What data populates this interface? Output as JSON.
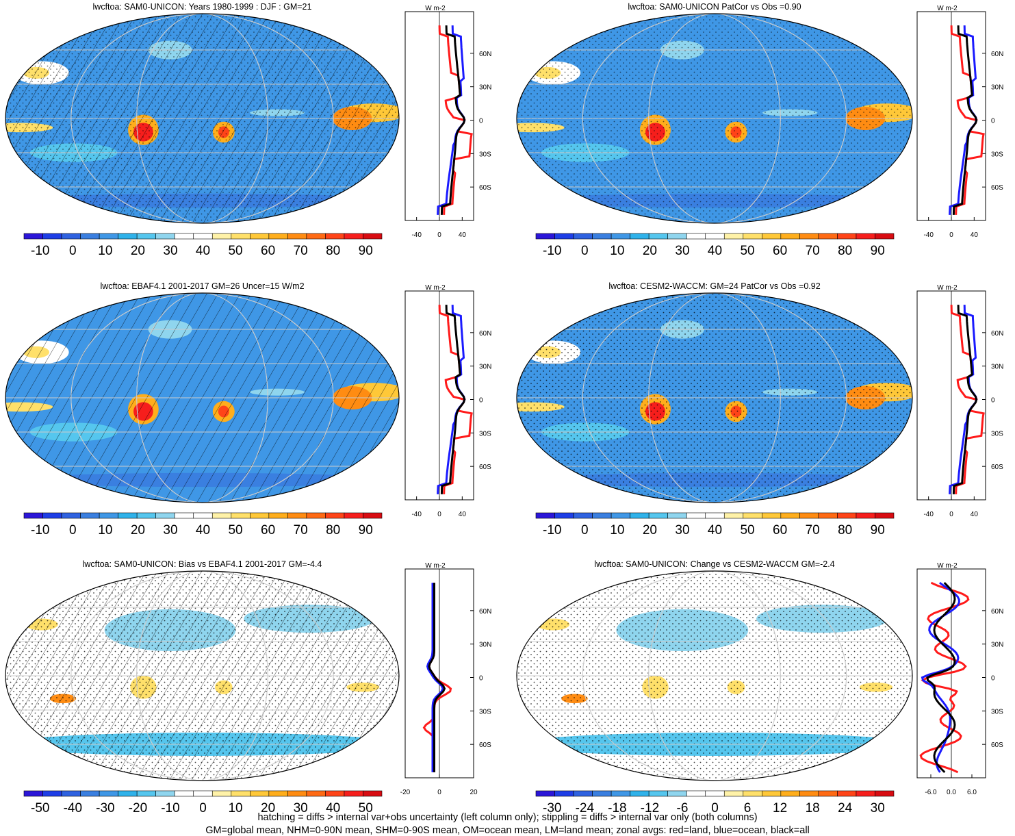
{
  "footer": {
    "line1": "hatching = diffs > internal var+obs uncertainty (left column only); stippling = diffs > internal var only (both columns)",
    "line2": "GM=global mean, NHM=0-90N mean, SHM=0-90S mean, OM=ocean mean, LM=land mean; zonal avgs: red=land, blue=ocean, black=all"
  },
  "chart_data": [
    {
      "type": "heatmap",
      "title": "lwcftoa: SAM0-UNICON: Years 1980-1999 : DJF : GM=21",
      "colorbar_ticks": [
        "-10",
        "0",
        "10",
        "20",
        "30",
        "40",
        "50",
        "60",
        "70",
        "80",
        "90"
      ],
      "colorbar_range": [
        -15,
        95
      ],
      "colorbar_colors": [
        "#2b16d8",
        "#1e3ee6",
        "#2f62e0",
        "#3a7fe0",
        "#3f97e6",
        "#2fb2ea",
        "#55c6ee",
        "#8fd5ee",
        "#ffffff",
        "#ffffff",
        "#fff2a8",
        "#ffe06a",
        "#ffc838",
        "#ffae1c",
        "#ff8c12",
        "#ff6a14",
        "#ff4418",
        "#f61e1c",
        "#d80c12"
      ],
      "zonal_profile": {
        "unit": "W m-2",
        "xticks": [
          "-40",
          "0",
          "40"
        ],
        "xrange": [
          -60,
          60
        ],
        "yticks": [
          "60N",
          "30N",
          "0",
          "30S",
          "60S"
        ]
      }
    },
    {
      "type": "heatmap",
      "title": "lwcftoa: SAM0-UNICON PatCor vs Obs =0.90",
      "colorbar_ticks": [
        "-10",
        "0",
        "10",
        "20",
        "30",
        "40",
        "50",
        "60",
        "70",
        "80",
        "90"
      ],
      "colorbar_range": [
        -15,
        95
      ],
      "colorbar_colors": [
        "#2b16d8",
        "#1e3ee6",
        "#2f62e0",
        "#3a7fe0",
        "#3f97e6",
        "#2fb2ea",
        "#55c6ee",
        "#8fd5ee",
        "#ffffff",
        "#ffffff",
        "#fff2a8",
        "#ffe06a",
        "#ffc838",
        "#ffae1c",
        "#ff8c12",
        "#ff6a14",
        "#ff4418",
        "#f61e1c",
        "#d80c12"
      ],
      "zonal_profile": {
        "unit": "W m-2",
        "xticks": [
          "-40",
          "0",
          "40"
        ],
        "xrange": [
          -60,
          60
        ],
        "yticks": [
          "60N",
          "30N",
          "0",
          "30S",
          "60S"
        ]
      }
    },
    {
      "type": "heatmap",
      "title": "lwcftoa: EBAF4.1 2001-2017 GM=26 Uncer=15 W/m2",
      "colorbar_ticks": [
        "-10",
        "0",
        "10",
        "20",
        "30",
        "40",
        "50",
        "60",
        "70",
        "80",
        "90"
      ],
      "colorbar_range": [
        -15,
        95
      ],
      "colorbar_colors": [
        "#2b16d8",
        "#1e3ee6",
        "#2f62e0",
        "#3a7fe0",
        "#3f97e6",
        "#2fb2ea",
        "#55c6ee",
        "#8fd5ee",
        "#ffffff",
        "#ffffff",
        "#fff2a8",
        "#ffe06a",
        "#ffc838",
        "#ffae1c",
        "#ff8c12",
        "#ff6a14",
        "#ff4418",
        "#f61e1c",
        "#d80c12"
      ],
      "zonal_profile": {
        "unit": "W m-2",
        "xticks": [
          "-40",
          "0",
          "40"
        ],
        "xrange": [
          -60,
          60
        ],
        "yticks": [
          "60N",
          "30N",
          "0",
          "30S",
          "60S"
        ]
      }
    },
    {
      "type": "heatmap",
      "title": "lwcftoa: CESM2-WACCM: GM=24 PatCor vs Obs =0.92",
      "colorbar_ticks": [
        "-10",
        "0",
        "10",
        "20",
        "30",
        "40",
        "50",
        "60",
        "70",
        "80",
        "90"
      ],
      "colorbar_range": [
        -15,
        95
      ],
      "colorbar_colors": [
        "#2b16d8",
        "#1e3ee6",
        "#2f62e0",
        "#3a7fe0",
        "#3f97e6",
        "#2fb2ea",
        "#55c6ee",
        "#8fd5ee",
        "#ffffff",
        "#ffffff",
        "#fff2a8",
        "#ffe06a",
        "#ffc838",
        "#ffae1c",
        "#ff8c12",
        "#ff6a14",
        "#ff4418",
        "#f61e1c",
        "#d80c12"
      ],
      "zonal_profile": {
        "unit": "W m-2",
        "xticks": [
          "-40",
          "0",
          "40"
        ],
        "xrange": [
          -60,
          60
        ],
        "yticks": [
          "60N",
          "30N",
          "0",
          "30S",
          "60S"
        ]
      }
    },
    {
      "type": "heatmap",
      "title": "lwcftoa: SAM0-UNICON: Bias vs EBAF4.1 2001-2017 GM=-4.4",
      "colorbar_ticks": [
        "-50",
        "-40",
        "-30",
        "-20",
        "-10",
        "0",
        "10",
        "20",
        "30",
        "40",
        "50"
      ],
      "colorbar_range": [
        -55,
        55
      ],
      "colorbar_colors": [
        "#2b16d8",
        "#1e3ee6",
        "#2f62e0",
        "#3a7fe0",
        "#3f97e6",
        "#2fb2ea",
        "#55c6ee",
        "#8fd5ee",
        "#ffffff",
        "#ffffff",
        "#fff2a8",
        "#ffe06a",
        "#ffc838",
        "#ffae1c",
        "#ff8c12",
        "#ff6a14",
        "#ff4418",
        "#f61e1c",
        "#d80c12"
      ],
      "zonal_profile": {
        "unit": "W m-2",
        "xticks": [
          "-20",
          "0",
          "20"
        ],
        "xrange": [
          -20,
          20
        ],
        "yticks": [
          "60N",
          "30N",
          "0",
          "30S",
          "60S"
        ]
      }
    },
    {
      "type": "heatmap",
      "title": "lwcftoa: SAM0-UNICON: Change vs CESM2-WACCM GM=-2.4",
      "colorbar_ticks": [
        "-30",
        "-24",
        "-18",
        "-12",
        "-6",
        "0",
        "6",
        "12",
        "18",
        "24",
        "30"
      ],
      "colorbar_range": [
        -33,
        33
      ],
      "colorbar_colors": [
        "#2b16d8",
        "#1e3ee6",
        "#2f62e0",
        "#3a7fe0",
        "#3f97e6",
        "#2fb2ea",
        "#55c6ee",
        "#8fd5ee",
        "#ffffff",
        "#ffffff",
        "#fff2a8",
        "#ffe06a",
        "#ffc838",
        "#ffae1c",
        "#ff8c12",
        "#ff6a14",
        "#ff4418",
        "#f61e1c",
        "#d80c12"
      ],
      "zonal_profile": {
        "unit": "W m-2",
        "xticks": [
          "-6.0",
          "0.0",
          "6.0"
        ],
        "xrange": [
          -10,
          10
        ],
        "yticks": [
          "60N",
          "30N",
          "0",
          "30S",
          "60S"
        ]
      }
    }
  ]
}
